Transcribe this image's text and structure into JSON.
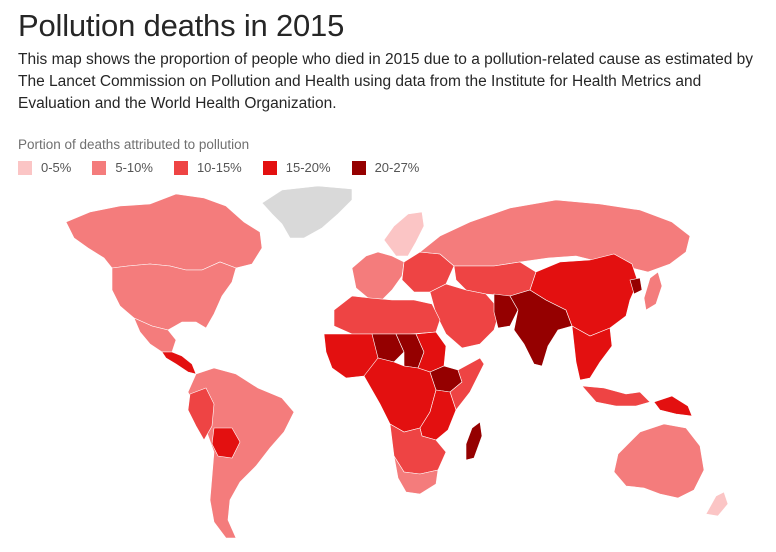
{
  "title": "Pollution deaths in 2015",
  "description": "This map shows the proportion of people who died in 2015 due to a pollution-related cause as estimated by The Lancet Commission on Pollution and Health using data from the Institute for Health Metrics and Evaluation and the World Health Organization.",
  "legend": {
    "title": "Portion of deaths attributed to pollution",
    "items": [
      {
        "label": "0-5%",
        "color": "#fbc5c5"
      },
      {
        "label": "5-10%",
        "color": "#f47c7c"
      },
      {
        "label": "10-15%",
        "color": "#ee4444"
      },
      {
        "label": "15-20%",
        "color": "#e31010"
      },
      {
        "label": "20-27%",
        "color": "#950000"
      }
    ]
  },
  "map": {
    "no_data_color": "#d9d9d9",
    "regions": [
      {
        "name": "Greenland",
        "bin": "no-data"
      },
      {
        "name": "Scandinavia",
        "bin": "0-5%"
      },
      {
        "name": "Canada",
        "bin": "5-10%"
      },
      {
        "name": "United States",
        "bin": "5-10%"
      },
      {
        "name": "Mexico",
        "bin": "5-10%"
      },
      {
        "name": "Central America",
        "bin": "15-20%"
      },
      {
        "name": "South America",
        "bin": "5-10%"
      },
      {
        "name": "Peru",
        "bin": "10-15%"
      },
      {
        "name": "Bolivia",
        "bin": "15-20%"
      },
      {
        "name": "Western Europe",
        "bin": "5-10%"
      },
      {
        "name": "Eastern Europe",
        "bin": "10-15%"
      },
      {
        "name": "Russia",
        "bin": "5-10%"
      },
      {
        "name": "Middle East",
        "bin": "10-15%"
      },
      {
        "name": "Central Asia",
        "bin": "10-15%"
      },
      {
        "name": "North Africa",
        "bin": "10-15%"
      },
      {
        "name": "West Africa",
        "bin": "15-20%"
      },
      {
        "name": "Chad",
        "bin": "20-27%"
      },
      {
        "name": "Niger",
        "bin": "20-27%"
      },
      {
        "name": "Central Africa",
        "bin": "15-20%"
      },
      {
        "name": "Sudan",
        "bin": "15-20%"
      },
      {
        "name": "Ethiopia",
        "bin": "20-27%"
      },
      {
        "name": "Somalia",
        "bin": "10-15%"
      },
      {
        "name": "East Africa",
        "bin": "15-20%"
      },
      {
        "name": "Southern Africa",
        "bin": "10-15%"
      },
      {
        "name": "South Africa",
        "bin": "5-10%"
      },
      {
        "name": "Madagascar",
        "bin": "20-27%"
      },
      {
        "name": "India",
        "bin": "20-27%"
      },
      {
        "name": "Pakistan",
        "bin": "20-27%"
      },
      {
        "name": "China",
        "bin": "15-20%"
      },
      {
        "name": "North Korea",
        "bin": "20-27%"
      },
      {
        "name": "Japan",
        "bin": "5-10%"
      },
      {
        "name": "Southeast Asia",
        "bin": "15-20%"
      },
      {
        "name": "Indonesia",
        "bin": "10-15%"
      },
      {
        "name": "Papua New Guinea",
        "bin": "15-20%"
      },
      {
        "name": "Australia",
        "bin": "5-10%"
      },
      {
        "name": "New Zealand",
        "bin": "0-5%"
      }
    ]
  }
}
